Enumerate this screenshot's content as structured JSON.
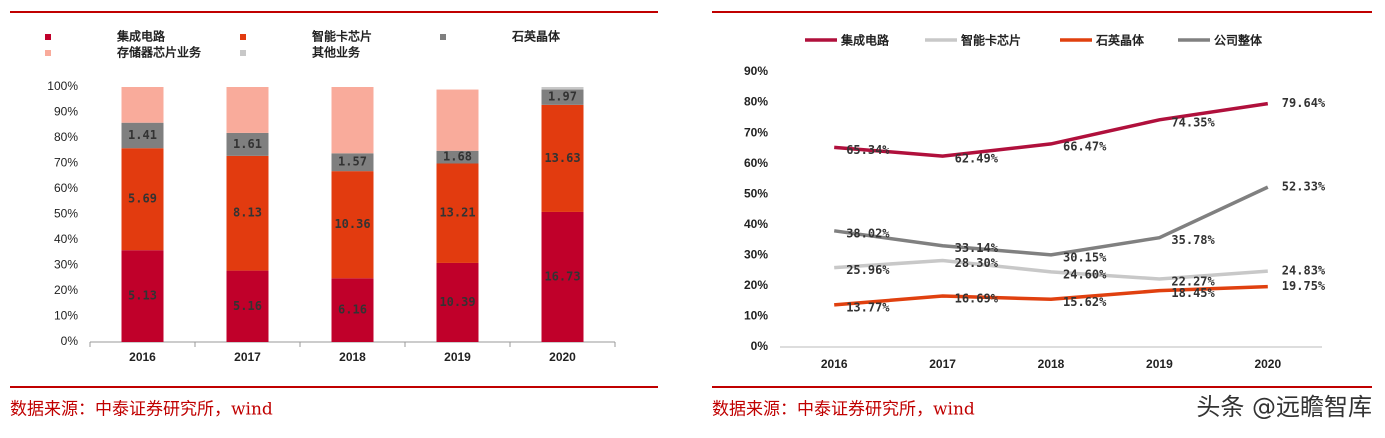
{
  "chart_data": [
    {
      "type": "bar",
      "stacked": true,
      "categories": [
        "2016",
        "2017",
        "2018",
        "2019",
        "2020"
      ],
      "ylim": [
        0,
        100
      ],
      "yticks": [
        {
          "value": 0,
          "label": "0%"
        },
        {
          "value": 10,
          "label": "10%"
        },
        {
          "value": 20,
          "label": "20%"
        },
        {
          "value": 30,
          "label": "30%"
        },
        {
          "value": 40,
          "label": "40%"
        },
        {
          "value": 50,
          "label": "50%"
        },
        {
          "value": 60,
          "label": "60%"
        },
        {
          "value": 70,
          "label": "70%"
        },
        {
          "value": 80,
          "label": "80%"
        },
        {
          "value": 90,
          "label": "90%"
        },
        {
          "value": 100,
          "label": "100%"
        }
      ],
      "series": [
        {
          "name": "集成电路",
          "color": "#c0002a",
          "values": [
            36,
            28,
            25,
            31,
            51
          ],
          "amounts": [
            5.13,
            5.16,
            6.16,
            10.39,
            16.73
          ]
        },
        {
          "name": "智能卡芯片",
          "color": "#e23b0f",
          "values": [
            40,
            45,
            42,
            39,
            42
          ],
          "amounts": [
            5.69,
            8.13,
            10.36,
            13.21,
            13.63
          ]
        },
        {
          "name": "石英晶体",
          "color": "#7f7f7f",
          "values": [
            10,
            9,
            7,
            5,
            6
          ],
          "amounts": [
            1.41,
            1.61,
            1.57,
            1.68,
            1.97
          ]
        },
        {
          "name": "存储器芯片业务",
          "color": "#f9ab9b",
          "values": [
            14,
            18,
            26,
            24,
            0
          ]
        },
        {
          "name": "其他业务",
          "color": "#c8c8c8",
          "values": [
            0,
            0,
            0,
            0,
            1
          ]
        }
      ]
    },
    {
      "type": "line",
      "categories": [
        "2016",
        "2017",
        "2018",
        "2019",
        "2020"
      ],
      "ylim": [
        0,
        90
      ],
      "yticks": [
        {
          "value": 0,
          "label": "0%"
        },
        {
          "value": 10,
          "label": "10%"
        },
        {
          "value": 20,
          "label": "20%"
        },
        {
          "value": 30,
          "label": "30%"
        },
        {
          "value": 40,
          "label": "40%"
        },
        {
          "value": 50,
          "label": "50%"
        },
        {
          "value": 60,
          "label": "60%"
        },
        {
          "value": 70,
          "label": "70%"
        },
        {
          "value": 80,
          "label": "80%"
        },
        {
          "value": 90,
          "label": "90%"
        }
      ],
      "series": [
        {
          "name": "集成电路",
          "color": "#b0103c",
          "values": [
            65.34,
            62.49,
            66.47,
            74.35,
            79.64
          ],
          "value_labels": [
            "65.34%",
            "62.49%",
            "66.47%",
            "74.35%",
            "79.64%"
          ]
        },
        {
          "name": "智能卡芯片",
          "color": "#c8c8c8",
          "values": [
            25.96,
            28.3,
            24.6,
            22.27,
            24.83
          ],
          "value_labels": [
            "25.96%",
            "28.30%",
            "24.60%",
            "22.27%",
            "24.83%"
          ]
        },
        {
          "name": "石英晶体",
          "color": "#e0400f",
          "values": [
            13.77,
            16.69,
            15.62,
            18.45,
            19.75
          ],
          "value_labels": [
            "13.77%",
            "16.69%",
            "15.62%",
            "18.45%",
            "19.75%"
          ]
        },
        {
          "name": "公司整体",
          "color": "#808080",
          "values": [
            38.02,
            33.14,
            30.15,
            35.78,
            52.33
          ],
          "value_labels": [
            "38.02%",
            "33.14%",
            "30.15%",
            "35.78%",
            "52.33%"
          ]
        }
      ]
    }
  ],
  "sources": [
    "数据来源：中泰证券研究所，wind",
    "数据来源：中泰证券研究所，wind"
  ],
  "watermark": "头条 @远瞻智库"
}
